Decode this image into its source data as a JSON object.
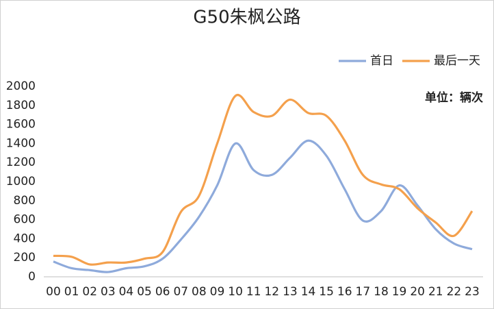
{
  "chart_data": {
    "type": "line",
    "title": "G50朱枫公路",
    "annotation": "单位：辆次",
    "categories": [
      "00",
      "01",
      "02",
      "03",
      "04",
      "05",
      "06",
      "07",
      "08",
      "09",
      "10",
      "11",
      "12",
      "13",
      "14",
      "15",
      "16",
      "17",
      "18",
      "19",
      "20",
      "21",
      "22",
      "23"
    ],
    "series": [
      {
        "name": "首日",
        "color": "#8eaadb",
        "values": [
          160,
          90,
          70,
          50,
          90,
          110,
          190,
          390,
          630,
          960,
          1400,
          1120,
          1070,
          1250,
          1430,
          1270,
          920,
          590,
          690,
          960,
          750,
          500,
          350,
          290
        ]
      },
      {
        "name": "最后一天",
        "color": "#f4a04c",
        "values": [
          220,
          210,
          130,
          150,
          150,
          190,
          260,
          680,
          850,
          1400,
          1900,
          1730,
          1690,
          1860,
          1720,
          1690,
          1430,
          1070,
          970,
          920,
          720,
          570,
          430,
          690
        ]
      }
    ],
    "ylim": [
      0,
      2000
    ],
    "yticks": [
      0,
      200,
      400,
      600,
      800,
      1000,
      1200,
      1400,
      1600,
      1800,
      2000
    ],
    "grid": false,
    "legend": "top-right"
  }
}
